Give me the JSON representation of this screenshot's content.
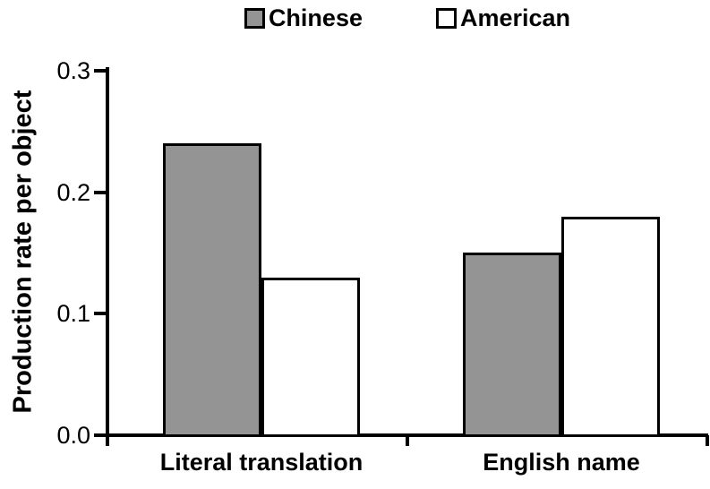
{
  "figure": {
    "background": "#ffffff",
    "axis_color": "#000000"
  },
  "chart_data": {
    "type": "bar",
    "title": "",
    "xlabel": "",
    "ylabel": "Production rate per object",
    "categories": [
      "Literal translation",
      "English name"
    ],
    "series": [
      {
        "name": "Chinese",
        "color": "#949494",
        "values": [
          0.24,
          0.15
        ]
      },
      {
        "name": "American",
        "color": "#ffffff",
        "values": [
          0.13,
          0.18
        ]
      }
    ],
    "ylim": [
      0,
      0.3
    ],
    "yticks": [
      "0.0",
      "0.1",
      "0.2",
      "0.3"
    ],
    "grid": false,
    "legend_position": "top-center",
    "bar_edge_color": "#000000"
  }
}
